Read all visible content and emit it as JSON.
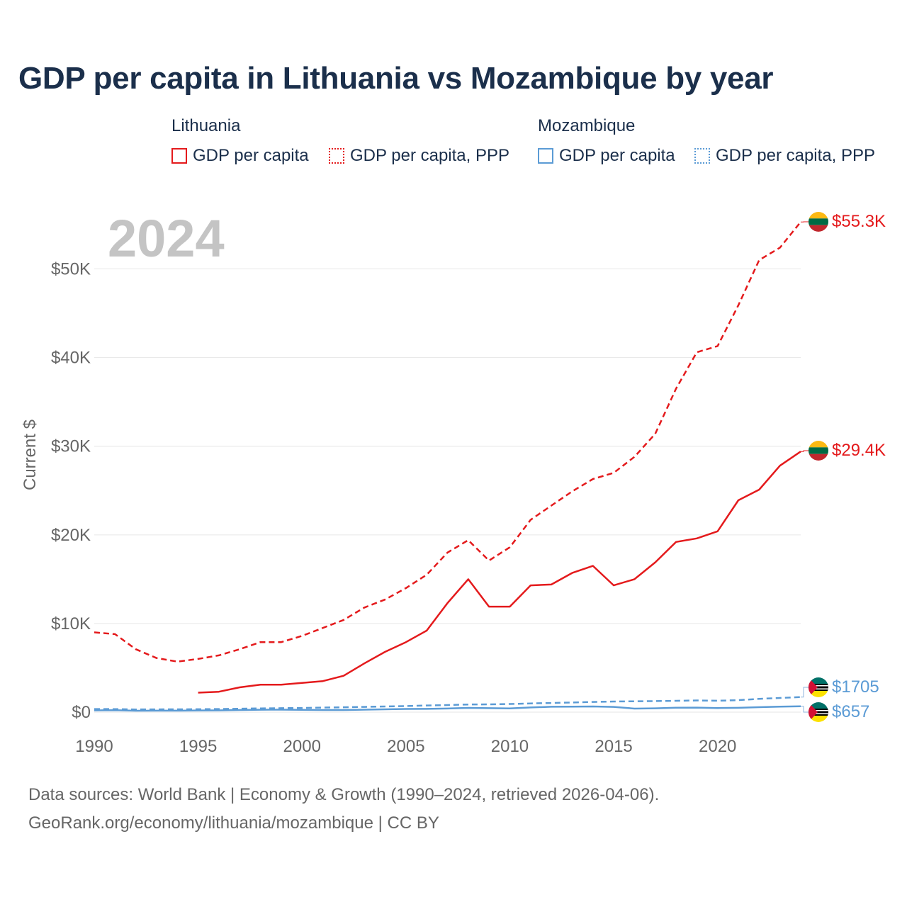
{
  "title": "GDP per capita in Lithuania vs Mozambique by year",
  "legend": {
    "groups": [
      {
        "name": "Lithuania",
        "color": "#e41a1c",
        "items": [
          "GDP per capita",
          "GDP per capita, PPP"
        ]
      },
      {
        "name": "Mozambique",
        "color": "#5b9bd5",
        "items": [
          "GDP per capita",
          "GDP per capita, PPP"
        ]
      }
    ]
  },
  "year_watermark": "2024",
  "source_line1": "Data sources: World Bank | Economy & Growth (1990–2024, retrieved 2026-04-06).",
  "source_line2": "GeoRank.org/economy/lithuania/mozambique | CC BY",
  "colors": {
    "lithuania": "#e41a1c",
    "mozambique": "#5b9bd5",
    "title": "#1b2f4b",
    "axis_text": "#666666",
    "grid": "#e6e6e6",
    "watermark": "#c4c4c4"
  },
  "chart_data": {
    "type": "line",
    "title": "GDP per capita in Lithuania vs Mozambique by year",
    "xlabel": "",
    "ylabel": "Current $",
    "xlim": [
      1990,
      2024
    ],
    "ylim": [
      0,
      55000
    ],
    "x_ticks": [
      1990,
      1995,
      2000,
      2005,
      2010,
      2015,
      2020
    ],
    "x_tick_labels": [
      "1990",
      "1995",
      "2000",
      "2005",
      "2010",
      "2015",
      "2020"
    ],
    "y_ticks": [
      0,
      10000,
      20000,
      30000,
      40000,
      50000
    ],
    "y_tick_labels": [
      "$0",
      "$10K",
      "$20K",
      "$30K",
      "$40K",
      "$50K"
    ],
    "grid": true,
    "legend_position": "top",
    "series": [
      {
        "name": "Lithuania GDP per capita, PPP",
        "country": "lithuania",
        "style": "dashed",
        "end_label": "$55.3K",
        "x": [
          1990,
          1991,
          1992,
          1993,
          1994,
          1995,
          1996,
          1997,
          1998,
          1999,
          2000,
          2001,
          2002,
          2003,
          2004,
          2005,
          2006,
          2007,
          2008,
          2009,
          2010,
          2011,
          2012,
          2013,
          2014,
          2015,
          2016,
          2017,
          2018,
          2019,
          2020,
          2021,
          2022,
          2023,
          2024
        ],
        "values": [
          9000,
          8800,
          7100,
          6100,
          5700,
          6000,
          6400,
          7100,
          7900,
          7900,
          8600,
          9500,
          10400,
          11800,
          12700,
          14000,
          15500,
          18000,
          19400,
          17100,
          18600,
          21700,
          23300,
          24900,
          26300,
          27000,
          28800,
          31400,
          36500,
          40600,
          41300,
          45900,
          51000,
          52400,
          55300
        ]
      },
      {
        "name": "Lithuania GDP per capita",
        "country": "lithuania",
        "style": "solid",
        "end_label": "$29.4K",
        "x": [
          1995,
          1996,
          1997,
          1998,
          1999,
          2000,
          2001,
          2002,
          2003,
          2004,
          2005,
          2006,
          2007,
          2008,
          2009,
          2010,
          2011,
          2012,
          2013,
          2014,
          2015,
          2016,
          2017,
          2018,
          2019,
          2020,
          2021,
          2022,
          2023,
          2024
        ],
        "values": [
          2200,
          2300,
          2800,
          3100,
          3100,
          3300,
          3500,
          4100,
          5500,
          6800,
          7900,
          9200,
          12300,
          15000,
          11900,
          11900,
          14300,
          14400,
          15700,
          16500,
          14300,
          15000,
          16900,
          19200,
          19600,
          20400,
          23900,
          25100,
          27800,
          29400
        ]
      },
      {
        "name": "Mozambique GDP per capita, PPP",
        "country": "mozambique",
        "style": "dashed",
        "end_label": "$1705",
        "x": [
          1990,
          1991,
          1992,
          1993,
          1994,
          1995,
          1996,
          1997,
          1998,
          1999,
          2000,
          2001,
          2002,
          2003,
          2004,
          2005,
          2006,
          2007,
          2008,
          2009,
          2010,
          2011,
          2012,
          2013,
          2014,
          2015,
          2016,
          2017,
          2018,
          2019,
          2020,
          2021,
          2022,
          2023,
          2024
        ],
        "values": [
          350,
          340,
          300,
          310,
          320,
          330,
          350,
          380,
          420,
          450,
          470,
          510,
          550,
          590,
          640,
          690,
          750,
          800,
          860,
          880,
          920,
          980,
          1030,
          1090,
          1150,
          1200,
          1220,
          1250,
          1280,
          1320,
          1290,
          1350,
          1500,
          1600,
          1705
        ]
      },
      {
        "name": "Mozambique GDP per capita",
        "country": "mozambique",
        "style": "solid",
        "end_label": "$657",
        "x": [
          1990,
          1991,
          1992,
          1993,
          1994,
          1995,
          1996,
          1997,
          1998,
          1999,
          2000,
          2001,
          2002,
          2003,
          2004,
          2005,
          2006,
          2007,
          2008,
          2009,
          2010,
          2011,
          2012,
          2013,
          2014,
          2015,
          2016,
          2017,
          2018,
          2019,
          2020,
          2021,
          2022,
          2023,
          2024
        ],
        "values": [
          200,
          220,
          160,
          170,
          170,
          190,
          200,
          240,
          270,
          280,
          260,
          240,
          240,
          280,
          320,
          360,
          370,
          410,
          480,
          450,
          420,
          530,
          610,
          620,
          640,
          590,
          400,
          430,
          500,
          510,
          460,
          490,
          560,
          620,
          657
        ]
      }
    ]
  }
}
